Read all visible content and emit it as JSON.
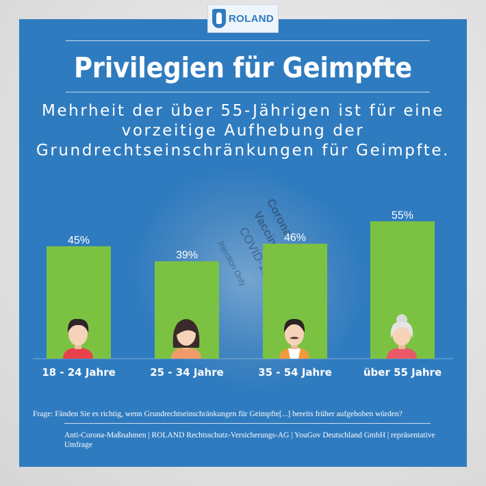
{
  "logo": {
    "text": "ROLAND"
  },
  "title": "Privilegien für Geimpfte",
  "subtitle": "Mehrheit der über 55-Jährigen ist für eine vorzeitige Aufhebung der Grundrechtseinschränkungen für Geimpfte.",
  "background": {
    "vial_lines": [
      "Corona",
      "Vaccine",
      "COVID-19",
      "Injection Only"
    ]
  },
  "chart_data": {
    "type": "bar",
    "categories": [
      "18 - 24 Jahre",
      "25 - 34 Jahre",
      "35 - 54 Jahre",
      "über 55 Jahre"
    ],
    "values": [
      45,
      39,
      46,
      55
    ],
    "value_labels": [
      "45%",
      "39%",
      "46%",
      "55%"
    ],
    "icons": [
      "young-man-icon",
      "young-woman-icon",
      "middle-aged-man-icon",
      "elderly-woman-icon"
    ],
    "ylim": [
      0,
      100
    ],
    "grid": false,
    "colors": {
      "bar": "#7cc242",
      "background": "#2f7bbf",
      "text": "#ffffff"
    }
  },
  "footer": {
    "question": "Frage:  Fänden Sie es richtig, wenn Grundrechtseinschränkungen für  Geimpfte[...] bereits früher aufgehoben würden?",
    "source": "Anti-Corona-Maßnahmen | ROLAND Rechtsschutz-Versicherungs-AG | YouGov Deutschland GmbH | repräsentative Umfrage"
  }
}
